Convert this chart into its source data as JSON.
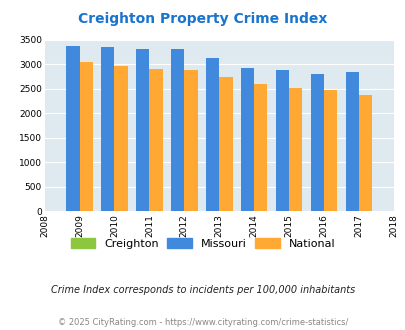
{
  "title": "Creighton Property Crime Index",
  "title_color": "#1874CD",
  "years": [
    2008,
    2009,
    2010,
    2011,
    2012,
    2013,
    2014,
    2015,
    2016,
    2017,
    2018
  ],
  "bar_years": [
    2009,
    2010,
    2011,
    2012,
    2013,
    2014,
    2015,
    2016,
    2017
  ],
  "missouri": [
    3370,
    3350,
    3310,
    3310,
    3120,
    2920,
    2870,
    2800,
    2840
  ],
  "national": [
    3040,
    2960,
    2910,
    2870,
    2730,
    2600,
    2510,
    2470,
    2380
  ],
  "creighton": [
    0,
    0,
    0,
    0,
    0,
    0,
    0,
    0,
    0
  ],
  "missouri_color": "#4189DD",
  "national_color": "#FFA833",
  "creighton_color": "#8DC63F",
  "ylim": [
    0,
    3500
  ],
  "yticks": [
    0,
    500,
    1000,
    1500,
    2000,
    2500,
    3000,
    3500
  ],
  "background_color": "#DFE9F0",
  "grid_color": "#FFFFFF",
  "note": "Crime Index corresponds to incidents per 100,000 inhabitants",
  "footer": "© 2025 CityRating.com - https://www.cityrating.com/crime-statistics/",
  "bar_width": 0.38
}
